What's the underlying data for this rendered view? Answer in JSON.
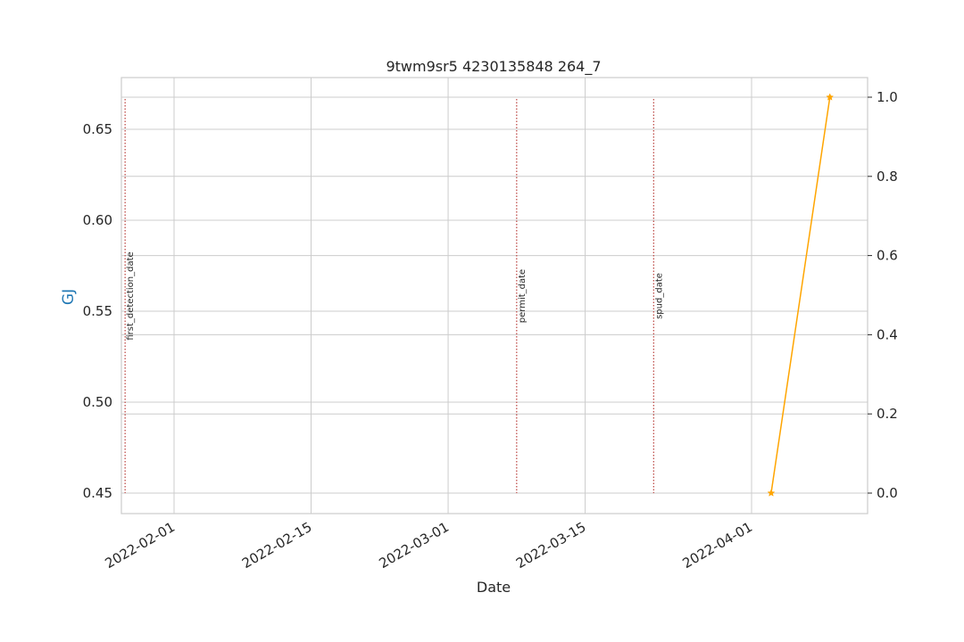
{
  "chart_data": {
    "type": "line",
    "title": "9twm9sr5 4230135848 264_7",
    "xlabel": "Date",
    "ylabel_left": "GJ",
    "ylabel_right": "",
    "x_ticks": [
      "2022-02-01",
      "2022-02-15",
      "2022-03-01",
      "2022-03-15",
      "2022-04-01"
    ],
    "y_left_ticks": [
      "0.45",
      "0.50",
      "0.55",
      "0.60",
      "0.65"
    ],
    "y_right_ticks": [
      "0.0",
      "0.2",
      "0.4",
      "0.6",
      "0.8",
      "1.0"
    ],
    "y_left_range": [
      0.45,
      0.667
    ],
    "y_right_range": [
      0.0,
      1.0
    ],
    "grid": true,
    "series": [
      {
        "axis": "right",
        "color": "#ffa500",
        "marker": "star",
        "points": [
          {
            "x": "2022-04-03",
            "y": 0.0
          },
          {
            "x": "2022-04-09",
            "y": 1.0
          }
        ]
      }
    ],
    "event_lines": [
      {
        "label": "first_detection_date",
        "x": "2022-01-27",
        "color": "#c0504d"
      },
      {
        "label": "permit_date",
        "x": "2022-03-08",
        "color": "#c0504d"
      },
      {
        "label": "spud_date",
        "x": "2022-03-22",
        "color": "#c0504d"
      }
    ],
    "colors": {
      "ylabel_left": "#1f77b4",
      "grid": "#cccccc",
      "frame": "#cccccc",
      "text": "#262626"
    }
  }
}
